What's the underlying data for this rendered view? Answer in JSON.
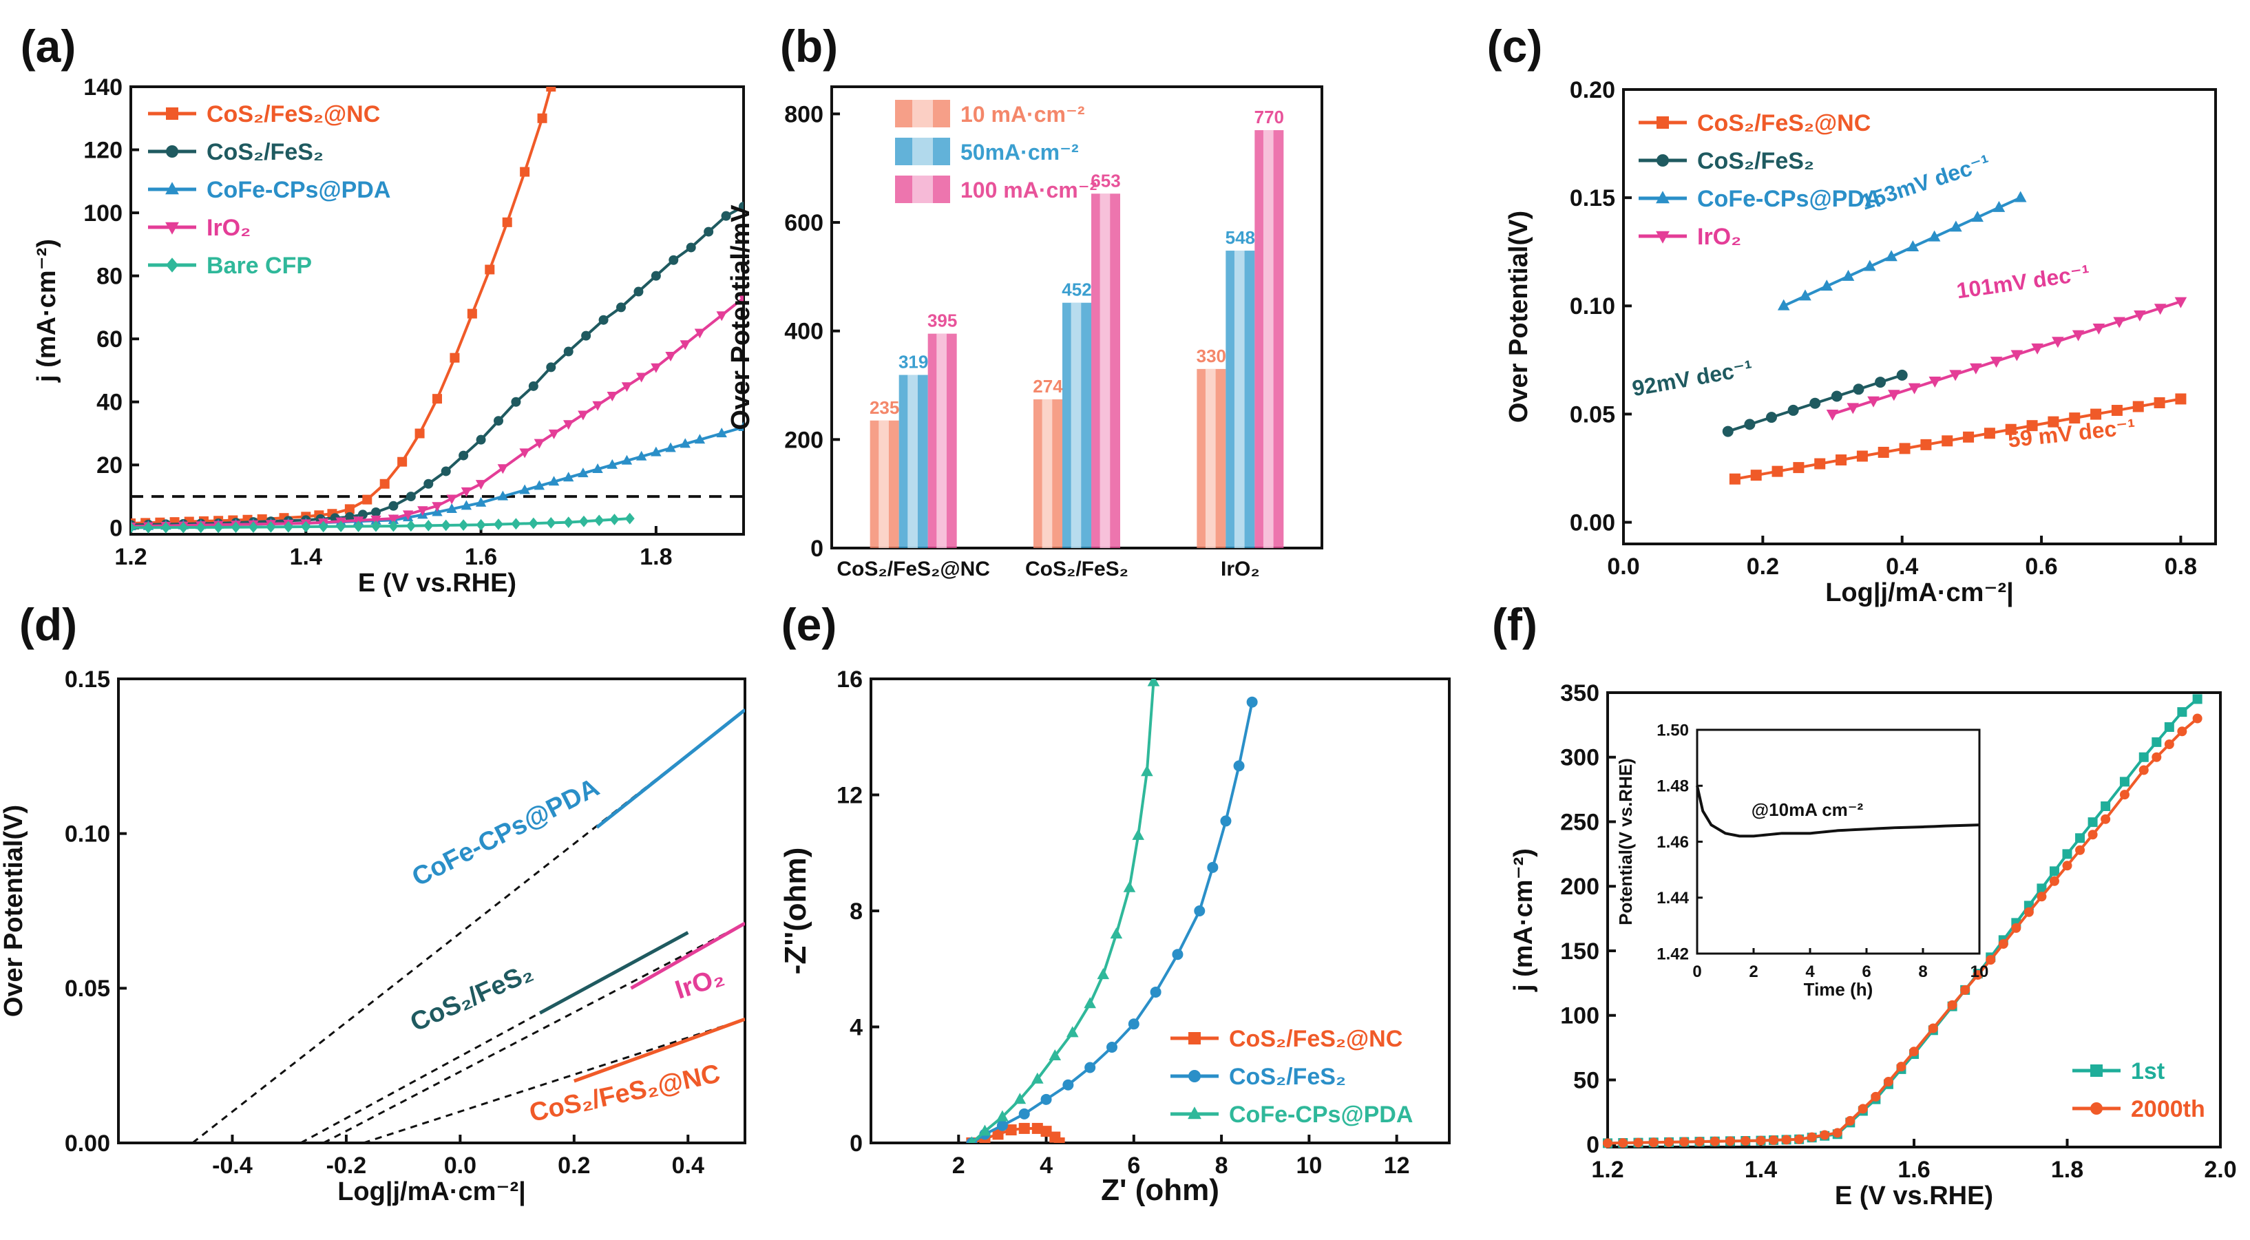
{
  "chart_data": [
    {
      "panel_label": "(a)",
      "type": "line",
      "xlabel": "E (V vs.RHE)",
      "ylabel": "j (mA·cm⁻²)",
      "xlim": [
        1.2,
        1.9
      ],
      "ylim": [
        -2,
        140
      ],
      "xticks": [
        1.2,
        1.4,
        1.6,
        1.8
      ],
      "xtick_labels": [
        "1.2",
        "1.4",
        "1.6",
        "1.8"
      ],
      "yticks": [
        0,
        20,
        40,
        60,
        80,
        100,
        120,
        140
      ],
      "ytick_labels": [
        "0",
        "20",
        "40",
        "60",
        "80",
        "100",
        "120",
        "140"
      ],
      "hline": {
        "y": 10,
        "style": "dashed"
      },
      "legend": [
        "CoS₂/FeS₂@NC",
        "CoS₂/FeS₂",
        "CoFe-CPs@PDA",
        "IrO₂",
        "Bare CFP"
      ],
      "series": [
        {
          "name": "CoS₂/FeS₂@NC",
          "color": "#f05a28",
          "marker": "square",
          "x": [
            1.2,
            1.25,
            1.3,
            1.35,
            1.4,
            1.43,
            1.45,
            1.47,
            1.49,
            1.51,
            1.53,
            1.55,
            1.57,
            1.59,
            1.61,
            1.63,
            1.65,
            1.67,
            1.68
          ],
          "y": [
            1.5,
            1.9,
            2.3,
            2.8,
            3.6,
            4.5,
            6,
            9,
            14,
            21,
            30,
            41,
            54,
            68,
            82,
            97,
            113,
            130,
            140
          ]
        },
        {
          "name": "CoS₂/FeS₂",
          "color": "#1f5a60",
          "marker": "circle",
          "x": [
            1.2,
            1.3,
            1.4,
            1.45,
            1.48,
            1.5,
            1.52,
            1.54,
            1.56,
            1.58,
            1.6,
            1.62,
            1.64,
            1.66,
            1.68,
            1.7,
            1.72,
            1.74,
            1.76,
            1.78,
            1.8,
            1.82,
            1.84,
            1.86,
            1.88,
            1.9
          ],
          "y": [
            1,
            1.5,
            2.5,
            3.5,
            5,
            7,
            10,
            14,
            18,
            23,
            28,
            34,
            40,
            45,
            51,
            56,
            61,
            66,
            70,
            75,
            80,
            85,
            89,
            94,
            99,
            102
          ]
        },
        {
          "name": "CoFe-CPs@PDA",
          "color": "#2a8fc8",
          "marker": "triangle",
          "x": [
            1.2,
            1.3,
            1.4,
            1.5,
            1.55,
            1.6,
            1.65,
            1.7,
            1.75,
            1.8,
            1.85,
            1.9
          ],
          "y": [
            0.5,
            1,
            1.5,
            2.5,
            5,
            8,
            12,
            16,
            20,
            24,
            28,
            32
          ]
        },
        {
          "name": "IrO₂",
          "color": "#e43d97",
          "marker": "triangle-down",
          "x": [
            1.2,
            1.3,
            1.4,
            1.5,
            1.55,
            1.6,
            1.65,
            1.7,
            1.75,
            1.8,
            1.85,
            1.9
          ],
          "y": [
            0.5,
            1,
            1.5,
            3,
            7,
            14,
            24,
            33,
            42,
            51,
            62,
            73
          ]
        },
        {
          "name": "Bare CFP",
          "color": "#2fb89a",
          "marker": "diamond",
          "x": [
            1.2,
            1.3,
            1.4,
            1.5,
            1.6,
            1.7,
            1.77
          ],
          "y": [
            0.1,
            0.2,
            0.4,
            0.6,
            1,
            1.8,
            3
          ]
        }
      ]
    },
    {
      "panel_label": "(b)",
      "type": "bar",
      "ylabel": "Over Potential/mV",
      "ylim": [
        0,
        850
      ],
      "yticks": [
        0,
        200,
        400,
        600,
        800
      ],
      "ytick_labels": [
        "0",
        "200",
        "400",
        "600",
        "800"
      ],
      "categories": [
        "CoS₂/FeS₂@NC",
        "CoS₂/FeS₂",
        "IrO₂"
      ],
      "series": [
        {
          "name": "10 mA·cm⁻²",
          "color": "#f4876a",
          "values": [
            235,
            274,
            330
          ],
          "value_labels": [
            "235",
            "274",
            "330"
          ]
        },
        {
          "name": "50mA·cm⁻²",
          "color": "#3b9fd0",
          "values": [
            319,
            452,
            548
          ],
          "value_labels": [
            "319",
            "452",
            "548"
          ]
        },
        {
          "name": "100 mA·cm⁻²",
          "color": "#e8539a",
          "values": [
            395,
            653,
            770
          ],
          "value_labels": [
            "395",
            "653",
            "770"
          ]
        }
      ]
    },
    {
      "panel_label": "(c)",
      "type": "line",
      "xlabel": "Log|j/mA·cm⁻²|",
      "ylabel": "Over Potential(V)",
      "xlim": [
        0,
        0.85
      ],
      "ylim": [
        -0.01,
        0.2
      ],
      "xticks": [
        0,
        0.2,
        0.4,
        0.6,
        0.8
      ],
      "xtick_labels": [
        "0.0",
        "0.2",
        "0.4",
        "0.6",
        "0.8"
      ],
      "yticks": [
        0,
        0.05,
        0.1,
        0.15,
        0.2
      ],
      "ytick_labels": [
        "0.00",
        "0.05",
        "0.10",
        "0.15",
        "0.20"
      ],
      "legend": [
        "CoS₂/FeS₂@NC",
        "CoS₂/FeS₂",
        "CoFe-CPs@PDA",
        "IrO₂"
      ],
      "annotations": [
        "153mV dec⁻¹",
        "101mV dec⁻¹",
        "92mV dec⁻¹",
        "59 mV dec⁻¹"
      ],
      "series": [
        {
          "name": "CoS₂/FeS₂@NC",
          "color": "#f05a28",
          "marker": "square",
          "x": [
            0.16,
            0.8
          ],
          "y": [
            0.02,
            0.057
          ]
        },
        {
          "name": "CoS₂/FeS₂",
          "color": "#1f5a60",
          "marker": "circle",
          "x": [
            0.15,
            0.4
          ],
          "y": [
            0.042,
            0.068
          ]
        },
        {
          "name": "CoFe-CPs@PDA",
          "color": "#2a8fc8",
          "marker": "triangle",
          "x": [
            0.23,
            0.57
          ],
          "y": [
            0.1,
            0.15
          ]
        },
        {
          "name": "IrO₂",
          "color": "#e43d97",
          "marker": "triangle-down",
          "x": [
            0.3,
            0.8
          ],
          "y": [
            0.05,
            0.102
          ]
        }
      ]
    },
    {
      "panel_label": "(d)",
      "type": "line",
      "xlabel": "Log|j/mA·cm⁻²|",
      "ylabel": "Over Potential(V)",
      "xlim": [
        -0.6,
        0.5
      ],
      "ylim": [
        0,
        0.15
      ],
      "xticks": [
        -0.4,
        -0.2,
        0,
        0.2,
        0.4
      ],
      "xtick_labels": [
        "-0.4",
        "-0.2",
        "0.0",
        "0.2",
        "0.4"
      ],
      "yticks": [
        0,
        0.05,
        0.1,
        0.15
      ],
      "ytick_labels": [
        "0.00",
        "0.05",
        "0.10",
        "0.15"
      ],
      "labels": [
        "CoFe-CPs@PDA",
        "CoS₂/FeS₂",
        "IrO₂",
        "CoS₂/FeS₂@NC"
      ],
      "series": [
        {
          "name": "CoFe-CPs@PDA",
          "color": "#2a8fc8",
          "x": [
            0.24,
            0.5
          ],
          "y": [
            0.102,
            0.14
          ],
          "extrap_x": [
            -0.47,
            0.5
          ],
          "extrap_y": [
            0,
            0.14
          ]
        },
        {
          "name": "CoS₂/FeS₂",
          "color": "#1f5a60",
          "x": [
            0.14,
            0.4
          ],
          "y": [
            0.042,
            0.068
          ],
          "extrap_x": [
            -0.28,
            0.4
          ],
          "extrap_y": [
            0,
            0.068
          ]
        },
        {
          "name": "IrO₂",
          "color": "#e43d97",
          "x": [
            0.3,
            0.5
          ],
          "y": [
            0.05,
            0.071
          ],
          "extrap_x": [
            -0.24,
            0.5
          ],
          "extrap_y": [
            0,
            0.071
          ]
        },
        {
          "name": "CoS₂/FeS₂@NC",
          "color": "#f05a28",
          "x": [
            0.2,
            0.5
          ],
          "y": [
            0.02,
            0.04
          ],
          "extrap_x": [
            -0.17,
            0.5
          ],
          "extrap_y": [
            0,
            0.04
          ]
        }
      ]
    },
    {
      "panel_label": "(e)",
      "type": "scatter",
      "xlabel": "Z' (ohm)",
      "ylabel": "-Z''(ohm)",
      "xlim": [
        0,
        13.2
      ],
      "ylim": [
        0,
        16
      ],
      "xticks": [
        2,
        4,
        6,
        8,
        10,
        12
      ],
      "xtick_labels": [
        "2",
        "4",
        "6",
        "8",
        "10",
        "12"
      ],
      "yticks": [
        0,
        4,
        8,
        12,
        16
      ],
      "ytick_labels": [
        "0",
        "4",
        "8",
        "12",
        "16"
      ],
      "legend": [
        "CoS₂/FeS₂@NC",
        "CoS₂/FeS₂",
        "CoFe-CPs@PDA"
      ],
      "series": [
        {
          "name": "CoS₂/FeS₂@NC",
          "color": "#f05a28",
          "marker": "square",
          "x": [
            2.3,
            2.6,
            2.9,
            3.2,
            3.5,
            3.8,
            4.0,
            4.2,
            4.3
          ],
          "y": [
            0.0,
            0.15,
            0.3,
            0.45,
            0.5,
            0.5,
            0.4,
            0.2,
            0.0
          ]
        },
        {
          "name": "CoS₂/FeS₂",
          "color": "#2a8fc8",
          "marker": "circle",
          "x": [
            2.3,
            2.6,
            3.0,
            3.5,
            4.0,
            4.5,
            5.0,
            5.5,
            6.0,
            6.5,
            7.0,
            7.5,
            7.8,
            8.1,
            8.4,
            8.7
          ],
          "y": [
            0.0,
            0.3,
            0.6,
            1.0,
            1.5,
            2.0,
            2.6,
            3.3,
            4.1,
            5.2,
            6.5,
            8.0,
            9.5,
            11.1,
            13.0,
            15.2
          ]
        },
        {
          "name": "CoFe-CPs@PDA",
          "color": "#2fb89a",
          "marker": "triangle",
          "x": [
            2.3,
            2.6,
            3.0,
            3.4,
            3.8,
            4.2,
            4.6,
            5.0,
            5.3,
            5.6,
            5.9,
            6.1,
            6.3,
            6.45
          ],
          "y": [
            0.0,
            0.4,
            0.9,
            1.5,
            2.2,
            3.0,
            3.8,
            4.8,
            5.8,
            7.2,
            8.8,
            10.6,
            12.8,
            15.9
          ]
        }
      ]
    },
    {
      "panel_label": "(f)",
      "type": "line",
      "xlabel": "E (V vs.RHE)",
      "ylabel": "j (mA·cm⁻²)",
      "xlim": [
        1.2,
        2.0
      ],
      "ylim": [
        -2,
        350
      ],
      "xticks": [
        1.2,
        1.4,
        1.6,
        1.8,
        2.0
      ],
      "xtick_labels": [
        "1.2",
        "1.4",
        "1.6",
        "1.8",
        "2.0"
      ],
      "yticks": [
        0,
        50,
        100,
        150,
        200,
        250,
        300,
        350
      ],
      "ytick_labels": [
        "0",
        "50",
        "100",
        "150",
        "200",
        "250",
        "300",
        "350"
      ],
      "legend": [
        "1st",
        "2000th"
      ],
      "series": [
        {
          "name": "1st",
          "color": "#1fae9a",
          "marker": "square",
          "x": [
            1.2,
            1.3,
            1.4,
            1.45,
            1.5,
            1.55,
            1.6,
            1.65,
            1.7,
            1.75,
            1.8,
            1.85,
            1.9,
            1.95,
            1.97
          ],
          "y": [
            1,
            2,
            3,
            4,
            8,
            35,
            70,
            107,
            145,
            185,
            225,
            262,
            300,
            335,
            345
          ]
        },
        {
          "name": "2000th",
          "color": "#f05a28",
          "marker": "circle",
          "x": [
            1.2,
            1.3,
            1.4,
            1.45,
            1.5,
            1.55,
            1.6,
            1.65,
            1.7,
            1.75,
            1.8,
            1.85,
            1.9,
            1.95,
            1.97
          ],
          "y": [
            1,
            2,
            3,
            4,
            9,
            37,
            72,
            108,
            143,
            180,
            216,
            252,
            290,
            320,
            330
          ]
        }
      ],
      "inset": {
        "type": "line",
        "xlabel": "Time (h)",
        "ylabel": "Potential(V vs.RHE)",
        "xlim": [
          0,
          10
        ],
        "ylim": [
          1.42,
          1.5
        ],
        "xticks": [
          0,
          2,
          4,
          6,
          8,
          10
        ],
        "xtick_labels": [
          "0",
          "2",
          "4",
          "6",
          "8",
          "10"
        ],
        "yticks": [
          1.42,
          1.44,
          1.46,
          1.48,
          1.5
        ],
        "ytick_labels": [
          "1.42",
          "1.44",
          "1.46",
          "1.48",
          "1.50"
        ],
        "annotation": "@10mA cm⁻²",
        "series": [
          {
            "name": "stability",
            "color": "#111111",
            "x": [
              0,
              0.2,
              0.5,
              1,
              1.5,
              2,
              3,
              4,
              5,
              6,
              7,
              8,
              9,
              10
            ],
            "y": [
              1.48,
              1.471,
              1.466,
              1.463,
              1.462,
              1.462,
              1.463,
              1.463,
              1.464,
              1.4645,
              1.465,
              1.4653,
              1.4657,
              1.466
            ]
          }
        ]
      }
    }
  ]
}
